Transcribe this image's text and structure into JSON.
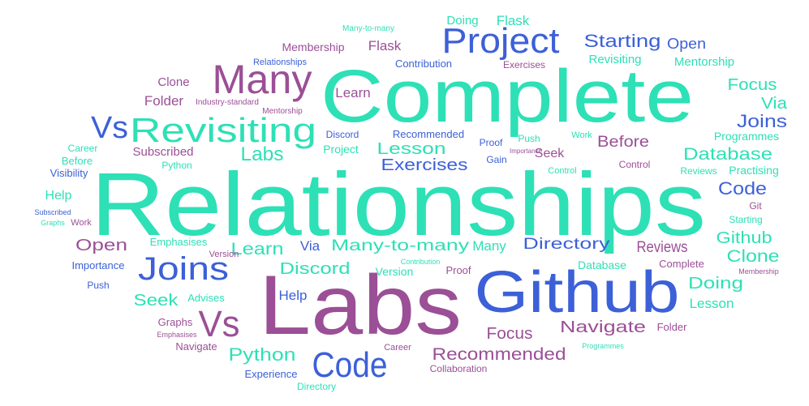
{
  "words": [
    "Relationships",
    "Complete",
    "Labs",
    "Github",
    "Project",
    "Many",
    "Revisiting",
    "Vs",
    "Joins",
    "Vs",
    "Code",
    "Labs",
    "Lesson",
    "Exercises",
    "Starting",
    "Open",
    "Revisiting",
    "Mentorship",
    "Focus",
    "Via",
    "Joins",
    "Programmes",
    "Before",
    "Database",
    "Reviews",
    "Practising",
    "Code",
    "Git",
    "Starting",
    "Github",
    "Clone",
    "Membership",
    "Complete",
    "Reviews",
    "Doing",
    "Lesson",
    "Folder",
    "Navigate",
    "Database",
    "Directory",
    "Many",
    "Many-to-many",
    "Via",
    "Learn",
    "Emphasises",
    "Version",
    "Open",
    "Importance",
    "Push",
    "Discord",
    "Version",
    "Contribution",
    "Proof",
    "Help",
    "Seek",
    "Advises",
    "Focus",
    "Recommended",
    "Python",
    "Career",
    "Collaboration",
    "Programmes",
    "Graphs",
    "Emphasises",
    "Navigate",
    "Experience",
    "Directory",
    "Career",
    "Before",
    "Visibility",
    "Subscribed",
    "Python",
    "Help",
    "Subscribed",
    "Graphs",
    "Work",
    "Clone",
    "Folder",
    "Industry-standard",
    "Mentorship",
    "Learn",
    "Membership",
    "Flask",
    "Relationships",
    "Contribution",
    "Exercises",
    "Many-to-many",
    "Doing",
    "Flask",
    "Discord",
    "Project",
    "Recommended",
    "Proof",
    "Push",
    "Work",
    "Importance",
    "Seek",
    "Gain",
    "Control",
    "Control"
  ]
}
